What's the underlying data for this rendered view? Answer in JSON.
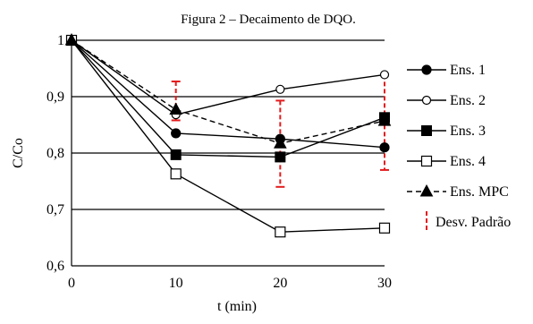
{
  "caption": "Figura 2 – Decaimento de DQO.",
  "chart_data": {
    "type": "line",
    "title": "",
    "xlabel": "t (min)",
    "ylabel": "C/Co",
    "x": [
      0,
      10,
      20,
      30
    ],
    "xticks": [
      "0",
      "10",
      "20",
      "30"
    ],
    "yticks": [
      "0,6",
      "0,7",
      "0,8",
      "0,9",
      "1"
    ],
    "ytick_values": [
      0.6,
      0.7,
      0.8,
      0.9,
      1.0
    ],
    "xlim": [
      0,
      30
    ],
    "ylim": [
      0.6,
      1.0
    ],
    "grid": "horizontal",
    "legend_position": "right",
    "series": [
      {
        "name": "Ens. 1",
        "values": [
          1.0,
          0.835,
          0.825,
          0.81
        ],
        "marker": "filled-circle",
        "line": "solid",
        "color": "#000000"
      },
      {
        "name": "Ens. 2",
        "values": [
          1.0,
          0.868,
          0.913,
          0.939
        ],
        "marker": "open-circle",
        "line": "solid",
        "color": "#000000"
      },
      {
        "name": "Ens. 3",
        "values": [
          1.0,
          0.797,
          0.793,
          0.863
        ],
        "marker": "filled-square",
        "line": "solid",
        "color": "#000000"
      },
      {
        "name": "Ens. 4",
        "values": [
          1.0,
          0.763,
          0.66,
          0.667
        ],
        "marker": "open-square",
        "line": "solid",
        "color": "#000000"
      },
      {
        "name": "Ens. MPC",
        "values": [
          1.0,
          0.877,
          0.817,
          0.857
        ],
        "marker": "filled-triangle",
        "line": "dashed",
        "color": "#000000"
      }
    ],
    "error_bars": {
      "name": "Desv. Padrão",
      "color": "#e31a1c",
      "line": "dashed",
      "x": [
        10,
        20,
        30
      ],
      "low": [
        0.858,
        0.74,
        0.77
      ],
      "high": [
        0.927,
        0.893,
        0.939
      ]
    }
  }
}
